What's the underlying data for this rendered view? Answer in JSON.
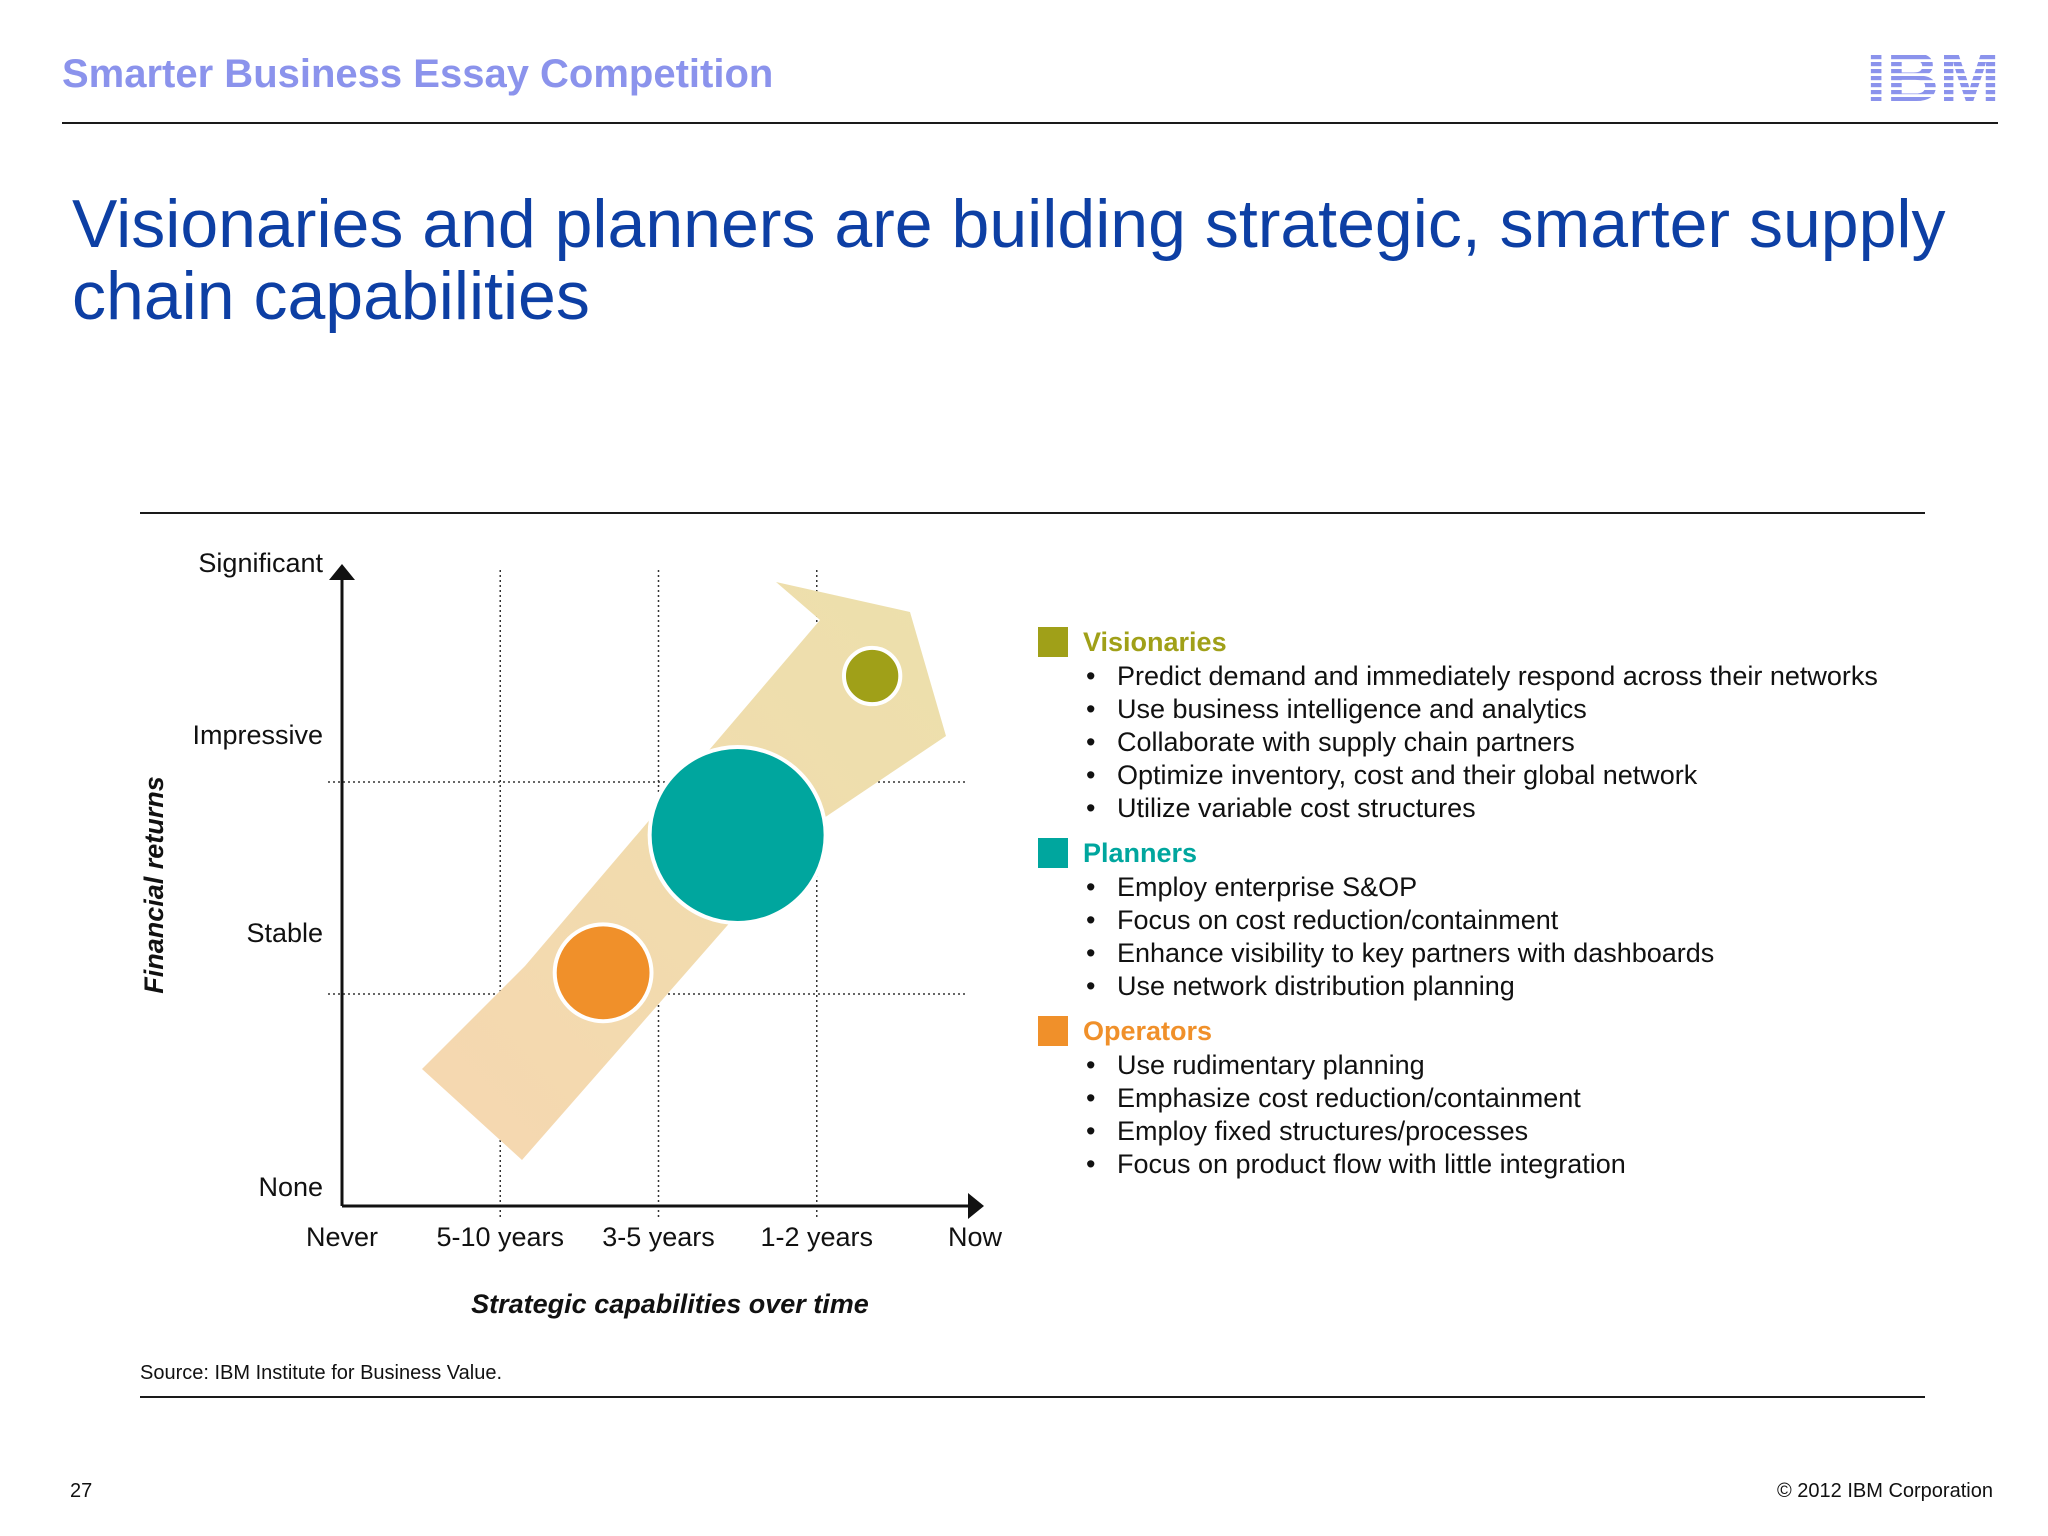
{
  "header": {
    "title": "Smarter Business Essay Competition",
    "logo_text": "IBM",
    "logo_color": "#8b93ec"
  },
  "slide": {
    "title": "Visionaries and planners are building strategic, smarter supply chain capabilities",
    "source": "Source: IBM Institute for Business Value.",
    "page_number": "27",
    "copyright": "© 2012 IBM Corporation"
  },
  "chart_data": {
    "type": "scatter",
    "xlabel": "Strategic capabilities over time",
    "ylabel": "Financial returns",
    "x_categories": [
      "Never",
      "5-10 years",
      "3-5 years",
      "1-2 years",
      "Now"
    ],
    "y_categories": [
      "None",
      "Stable",
      "Impressive",
      "Significant"
    ],
    "gridlines": {
      "x": [
        "5-10 years",
        "3-5 years",
        "1-2 years"
      ],
      "y": [
        "Stable",
        "Impressive"
      ],
      "style": "dotted"
    },
    "trend_arrow": true,
    "series": [
      {
        "name": "Operators",
        "color": "#f0902a",
        "x": 1.65,
        "y": 1.1,
        "size": 0.55
      },
      {
        "name": "Planners",
        "color": "#00a69e",
        "x": 2.5,
        "y": 1.75,
        "size": 1.0
      },
      {
        "name": "Visionaries",
        "color": "#a0a018",
        "x": 3.35,
        "y": 2.5,
        "size": 0.32
      }
    ]
  },
  "legend": [
    {
      "name": "Visionaries",
      "color": "#a0a018",
      "items": [
        "Predict demand and immediately respond across their networks",
        "Use business intelligence and analytics",
        "Collaborate with supply chain partners",
        "Optimize inventory, cost and their global network",
        "Utilize variable cost structures"
      ]
    },
    {
      "name": "Planners",
      "color": "#00a69e",
      "items": [
        "Employ enterprise S&OP",
        "Focus on cost reduction/containment",
        "Enhance visibility to key partners with dashboards",
        "Use network distribution planning"
      ]
    },
    {
      "name": "Operators",
      "color": "#f0902a",
      "items": [
        "Use rudimentary planning",
        "Emphasize cost reduction/containment",
        "Employ fixed structures/processes",
        "Focus on product flow with little integration"
      ]
    }
  ]
}
